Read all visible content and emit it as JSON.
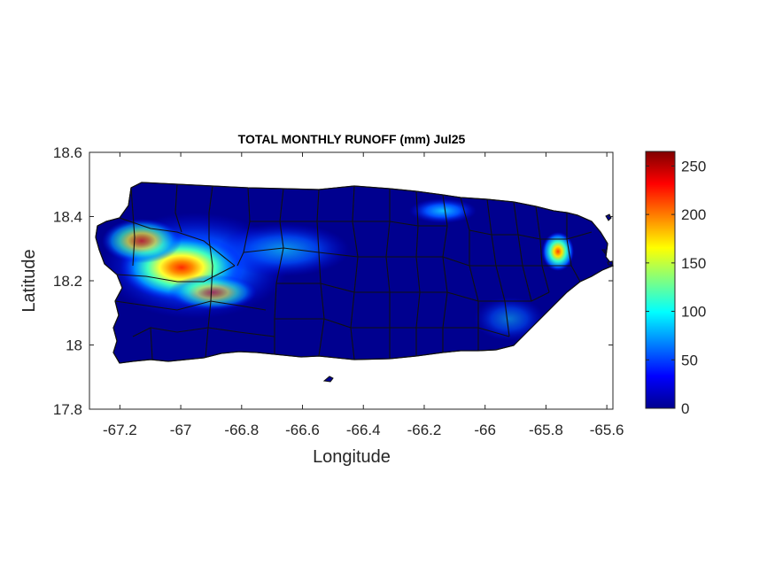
{
  "title": "TOTAL MONTHLY RUNOFF (mm) Jul25",
  "xlabel": "Longitude",
  "ylabel": "Latitude",
  "x_ticks": [
    "-67.2",
    "-67",
    "-66.8",
    "-66.6",
    "-66.4",
    "-66.2",
    "-66",
    "-65.8",
    "-65.6"
  ],
  "y_ticks": [
    "18.6",
    "18.4",
    "18.2",
    "18"
  ],
  "y_tick_bottom": "17.8",
  "colorbar": {
    "ticks": [
      "250",
      "200",
      "150",
      "100",
      "50",
      "0"
    ],
    "range": [
      0,
      265
    ],
    "colormap": "jet"
  },
  "colors": {
    "background_runoff": "#00008f",
    "axis": "#262626",
    "borders": "#111111"
  },
  "map_data": {
    "extent_lon": [
      -67.3,
      -65.58
    ],
    "extent_lat": [
      17.8,
      18.6
    ],
    "hotspots": [
      {
        "region": "west-central interior",
        "peak_mm": 230
      },
      {
        "region": "east (El Yunque)",
        "peak_mm": 195
      },
      {
        "region": "north-central coast",
        "peak_mm": 80
      }
    ]
  }
}
